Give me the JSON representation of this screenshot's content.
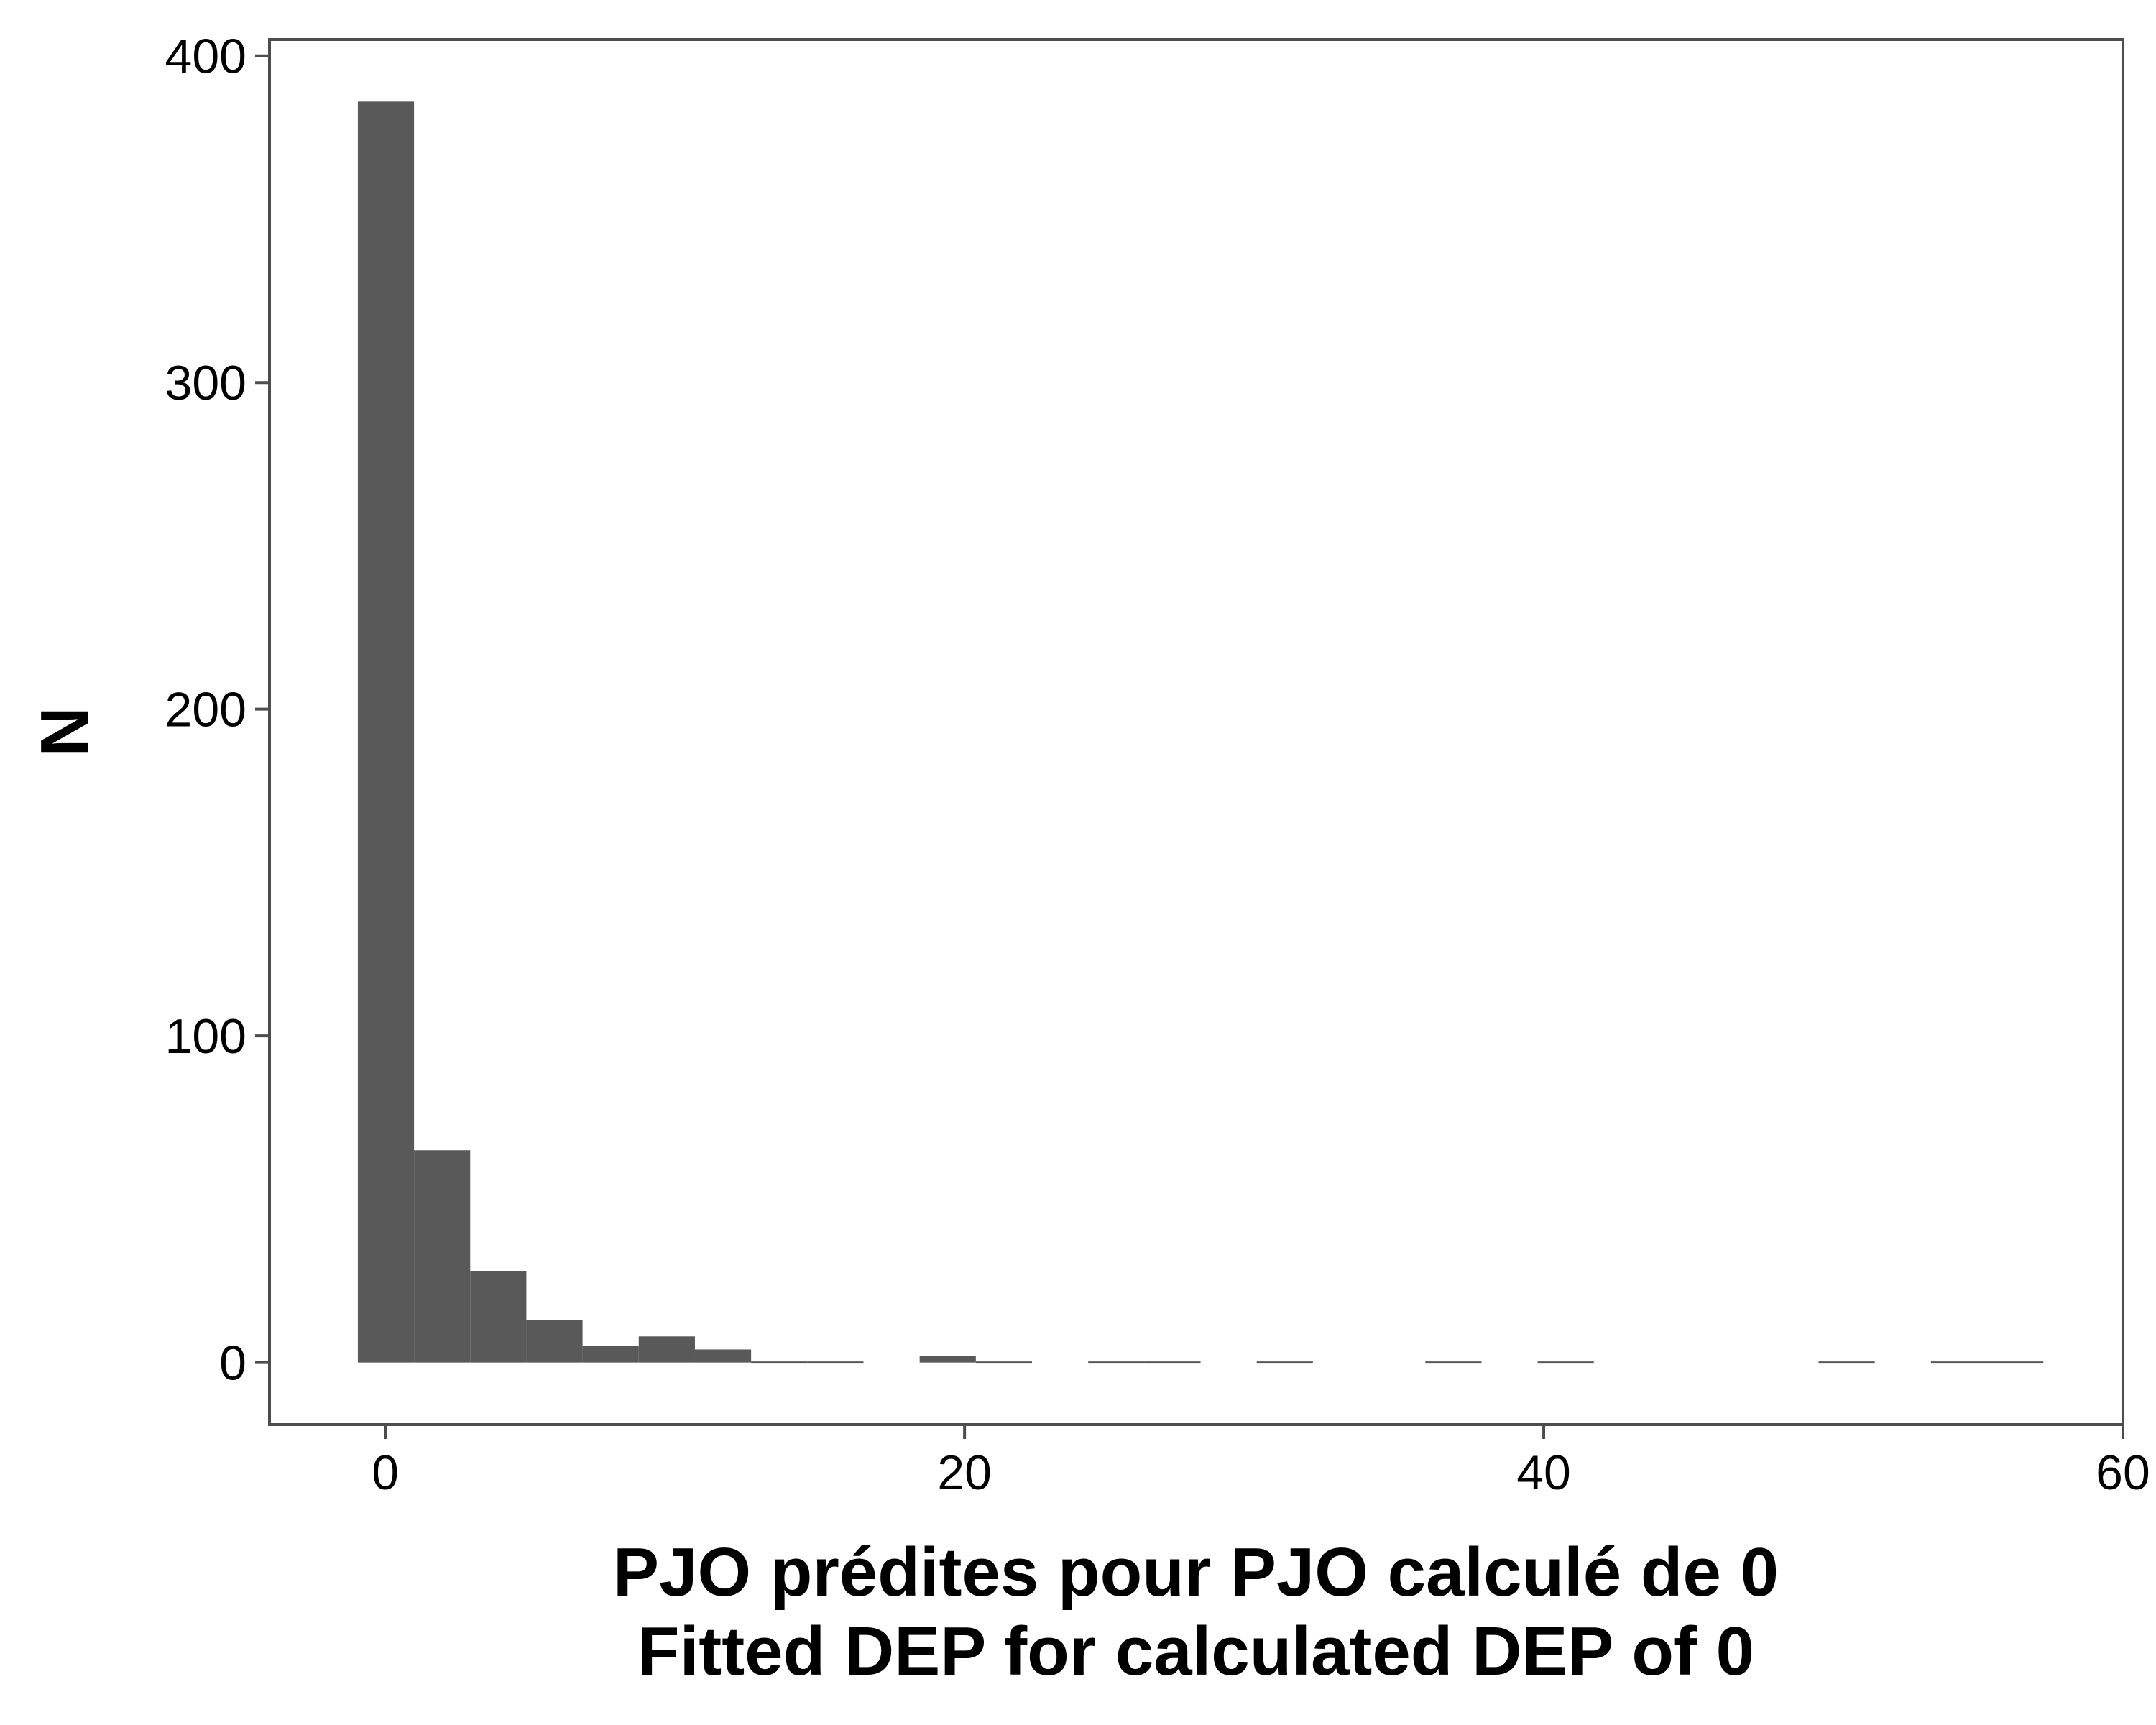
{
  "chart_data": {
    "type": "bar",
    "subtype": "histogram",
    "xlabel_line1": "PJO prédites pour PJO calculé de 0",
    "xlabel_line2": "Fitted DEP for calculated DEP of 0",
    "ylabel": "N",
    "xlim": [
      -4,
      60
    ],
    "ylim": [
      -19,
      405
    ],
    "x_ticks": [
      0,
      20,
      40,
      60
    ],
    "y_ticks": [
      0,
      100,
      200,
      300,
      400
    ],
    "bin_width": 1.94,
    "series": [
      {
        "bins": [
          {
            "x0": -0.95,
            "x1": 0.99,
            "count": 386
          },
          {
            "x0": 0.99,
            "x1": 2.93,
            "count": 65
          },
          {
            "x0": 2.93,
            "x1": 4.87,
            "count": 28
          },
          {
            "x0": 4.87,
            "x1": 6.81,
            "count": 13
          },
          {
            "x0": 6.81,
            "x1": 8.75,
            "count": 5
          },
          {
            "x0": 8.75,
            "x1": 10.69,
            "count": 8
          },
          {
            "x0": 10.69,
            "x1": 12.63,
            "count": 4
          },
          {
            "x0": 12.63,
            "x1": 14.57,
            "count": 0
          },
          {
            "x0": 14.57,
            "x1": 16.51,
            "count": 0
          },
          {
            "x0": 18.45,
            "x1": 20.39,
            "count": 2
          },
          {
            "x0": 20.39,
            "x1": 22.33,
            "count": 0
          },
          {
            "x0": 24.27,
            "x1": 26.21,
            "count": 0
          },
          {
            "x0": 26.21,
            "x1": 28.15,
            "count": 0
          },
          {
            "x0": 30.09,
            "x1": 32.03,
            "count": 0
          },
          {
            "x0": 35.91,
            "x1": 37.85,
            "count": 0
          },
          {
            "x0": 39.79,
            "x1": 41.73,
            "count": 0
          },
          {
            "x0": 49.49,
            "x1": 51.43,
            "count": 0
          },
          {
            "x0": 53.37,
            "x1": 55.31,
            "count": 0
          },
          {
            "x0": 55.31,
            "x1": 57.25,
            "count": 0
          }
        ]
      }
    ],
    "grid": false,
    "legend": "none",
    "colors": {
      "bar": "#595959",
      "axis": "#4d4d4d",
      "text": "#000000",
      "background": "#ffffff"
    }
  }
}
